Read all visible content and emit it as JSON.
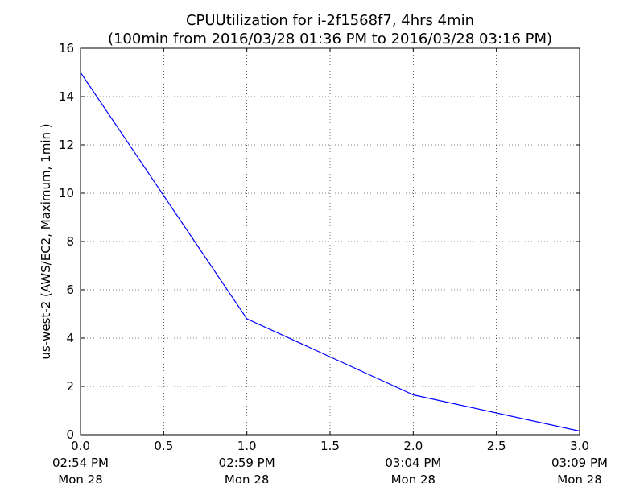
{
  "chart_data": {
    "type": "line",
    "title": "CPUUtilization for i-2f1568f7, 4hrs 4min",
    "subtitle": "(100min from 2016/03/28 01:36 PM to 2016/03/28 03:16 PM)",
    "xlabel": "",
    "ylabel": "us-west-2 (AWS/EC2, Maximum, 1min )",
    "xlim": [
      0,
      3
    ],
    "ylim": [
      0,
      16
    ],
    "grid": true,
    "x_ticks": [
      {
        "value": 0.0,
        "label": "0.0",
        "time": "02:54 PM",
        "date": "Mon 28"
      },
      {
        "value": 0.5,
        "label": "0.5"
      },
      {
        "value": 1.0,
        "label": "1.0",
        "time": "02:59 PM",
        "date": "Mon 28"
      },
      {
        "value": 1.5,
        "label": "1.5"
      },
      {
        "value": 2.0,
        "label": "2.0",
        "time": "03:04 PM",
        "date": "Mon 28"
      },
      {
        "value": 2.5,
        "label": "2.5"
      },
      {
        "value": 3.0,
        "label": "3.0",
        "time": "03:09 PM",
        "date": "Mon 28"
      }
    ],
    "y_ticks": [
      0,
      2,
      4,
      6,
      8,
      10,
      12,
      14,
      16
    ],
    "series": [
      {
        "color": "#0000ff",
        "x": [
          0,
          1,
          2,
          3
        ],
        "y": [
          15.0,
          4.8,
          1.65,
          0.15
        ]
      }
    ]
  }
}
